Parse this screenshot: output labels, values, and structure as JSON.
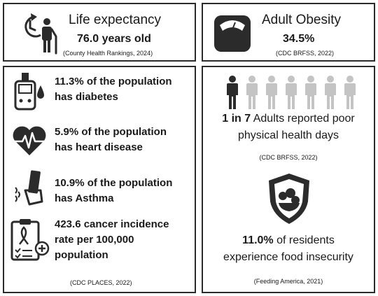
{
  "life": {
    "title": "Life expectancy",
    "value": "76.0 years old",
    "source": "(County Health Rankings, 2024)"
  },
  "obesity": {
    "title": "Adult Obesity",
    "value": "34.5%",
    "source": "(CDC BRFSS, 2022)"
  },
  "conditions": {
    "items": [
      {
        "icon": "glucose-meter-icon",
        "highlight": "11.3%",
        "line1_rest": " of the population",
        "line2": "has diabetes"
      },
      {
        "icon": "heart-rate-icon",
        "highlight": "5.9%",
        "line1_rest": " of the population",
        "line2": "has heart disease"
      },
      {
        "icon": "inhaler-icon",
        "highlight": "10.9%",
        "line1_rest": " of the population",
        "line2": "has Asthma"
      },
      {
        "icon": "cancer-ribbon-report-icon",
        "highlight": "423.6",
        "line1_rest": " cancer incidence",
        "line2": "rate per 100,000",
        "line3": "population"
      }
    ],
    "source": "(CDC PLACES, 2022)"
  },
  "physical": {
    "highlight": "1 in 7",
    "line1_rest": " Adults reported poor",
    "line2": "physical health days",
    "source": "(CDC BRFSS, 2022)",
    "people_total": 7,
    "people_highlighted": 1
  },
  "food": {
    "highlight": "11.0%",
    "line1_rest": " of residents",
    "line2": "experience food insecurity",
    "source": "(Feeding America, 2021)"
  },
  "colors": {
    "dark": "#2b2b2b",
    "light_person": "#c4c4c4",
    "text": "#1a1a1a"
  }
}
